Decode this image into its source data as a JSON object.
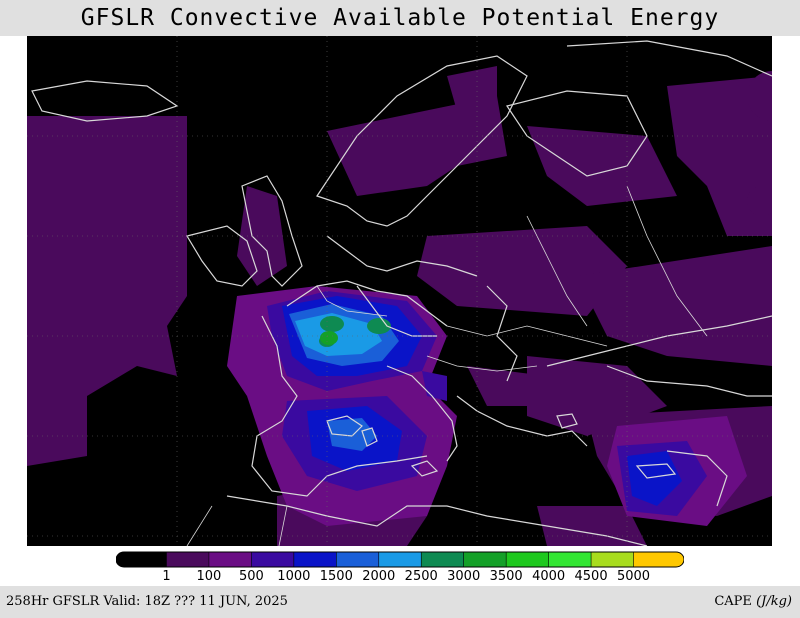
{
  "title": "GFSLR Convective Available Potential Energy",
  "footer": {
    "valid_text": "258Hr GFSLR Valid: 18Z ??? 11 JUN, 2025",
    "units_text": "CAPE (J/kg)"
  },
  "legend": {
    "labels": [
      "1",
      "100",
      "500",
      "1000",
      "1500",
      "2000",
      "2500",
      "3000",
      "3500",
      "4000",
      "4500",
      "5000"
    ],
    "colors": [
      "#000000",
      "#4a0a5c",
      "#6a0d84",
      "#3a0aa0",
      "#0a14c8",
      "#1a5fd8",
      "#1a9ae6",
      "#0e8a52",
      "#14a028",
      "#1ec81e",
      "#33e633",
      "#a8dc1e",
      "#ffc800"
    ]
  },
  "map": {
    "region": "Europe",
    "background_color": "#000000",
    "coastline_color": "#d8d8d8",
    "field": "CAPE"
  }
}
